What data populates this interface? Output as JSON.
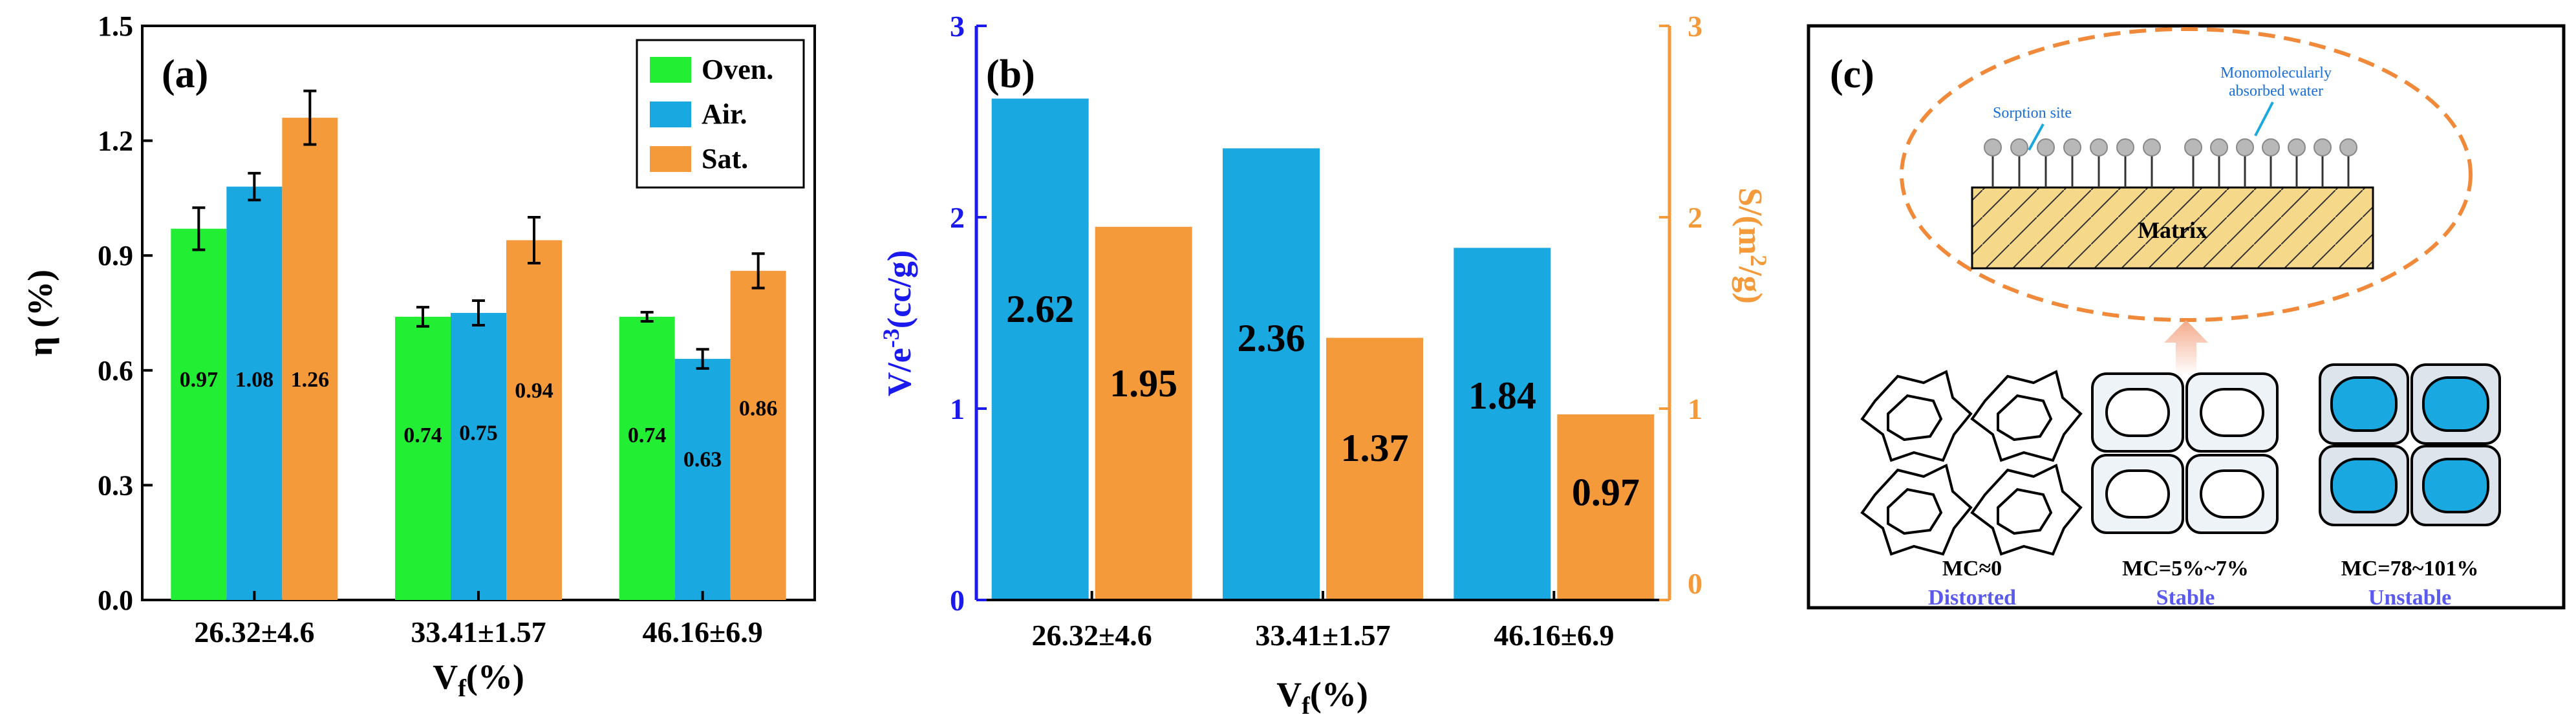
{
  "chart_data": [
    {
      "type": "bar",
      "panel_label": "(a)",
      "ylabel": "η (%)",
      "xlabel_main": "V",
      "xlabel_sub": "f",
      "xlabel_rest": "(%)",
      "categories": [
        "26.32±4.6",
        "33.41±1.57",
        "46.16±6.9"
      ],
      "ylim": [
        0,
        1.5
      ],
      "yticks": [
        "0.0",
        "0.3",
        "0.6",
        "0.9",
        "1.2",
        "1.5"
      ],
      "legend_position": "top-right",
      "series": [
        {
          "name": "Oven.",
          "color": "#22ee33",
          "values": [
            0.97,
            0.74,
            0.74
          ],
          "errors": [
            0.055,
            0.025,
            0.012
          ],
          "labels": [
            "0.97",
            "0.74",
            "0.74"
          ]
        },
        {
          "name": "Air.",
          "color": "#1aa8e0",
          "values": [
            1.08,
            0.75,
            0.63
          ],
          "errors": [
            0.035,
            0.032,
            0.025
          ],
          "labels": [
            "1.08",
            "0.75",
            "0.63"
          ]
        },
        {
          "name": "Sat.",
          "color": "#f49a3a",
          "values": [
            1.26,
            0.94,
            0.86
          ],
          "errors": [
            0.07,
            0.06,
            0.045
          ],
          "labels": [
            "1.26",
            "0.94",
            "0.86"
          ]
        }
      ]
    },
    {
      "type": "bar",
      "panel_label": "(b)",
      "ylabel_left": "V/e",
      "ylabel_left_sup": "-3",
      "ylabel_left_rest": "(cc/g)",
      "ylabel_right": "S/(m",
      "ylabel_right_sup": "2",
      "ylabel_right_rest": "/g)",
      "xlabel_main": "V",
      "xlabel_sub": "f",
      "xlabel_rest": "(%)",
      "categories": [
        "26.32±4.6",
        "33.41±1.57",
        "46.16±6.9"
      ],
      "ylim_left": [
        0,
        3
      ],
      "ylim_right": [
        0,
        3
      ],
      "yticks_left": [
        "0",
        "1",
        "2",
        "3"
      ],
      "yticks_right": [
        "0",
        "1",
        "2",
        "3"
      ],
      "left_axis_color": "#1a1aee",
      "right_axis_color": "#f49a3a",
      "series": [
        {
          "name": "V",
          "axis": "left",
          "color": "#1aa8e0",
          "values": [
            2.62,
            2.36,
            1.84
          ],
          "labels": [
            "2.62",
            "2.36",
            "1.84"
          ]
        },
        {
          "name": "S",
          "axis": "right",
          "color": "#f49a3a",
          "values": [
            1.95,
            1.37,
            0.97
          ],
          "labels": [
            "1.95",
            "1.37",
            "0.97"
          ]
        }
      ]
    }
  ],
  "panel_c": {
    "label": "(c)",
    "sorption_site": "Sorption site",
    "mono_line1": "Monomolecularly",
    "mono_line2": "absorbed water",
    "matrix": "Matrix",
    "states": [
      {
        "mc": "MC≈0",
        "name": "Distorted"
      },
      {
        "mc": "MC=5%~7%",
        "name": "Stable"
      },
      {
        "mc": "MC=78~101%",
        "name": "Unstable"
      }
    ],
    "colors": {
      "accent": "#1aa8e0",
      "dash": "#f08a3a",
      "state_text": "#5a5aee",
      "matrix_fill": "#f6d88a"
    }
  }
}
